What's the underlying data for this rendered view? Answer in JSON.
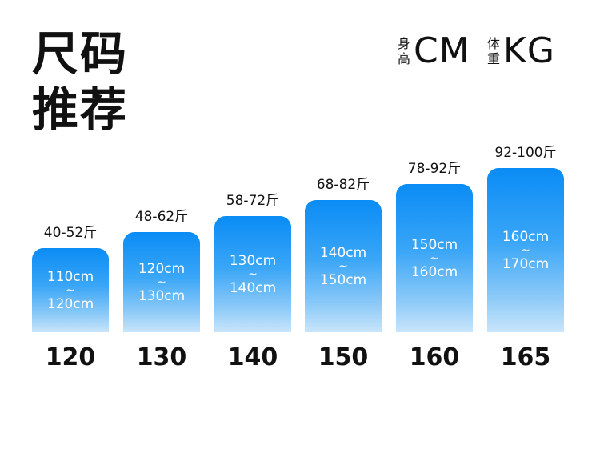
{
  "title": {
    "line1": "尺码",
    "line2": "推荐"
  },
  "legend": {
    "height": {
      "char1": "身",
      "char2": "高",
      "unit": "CM"
    },
    "weight": {
      "char1": "体",
      "char2": "重",
      "unit": "KG"
    }
  },
  "columns": [
    {
      "weight": "40-52斤",
      "from": "110cm",
      "sep": "~",
      "to": "120cm",
      "size": "120"
    },
    {
      "weight": "48-62斤",
      "from": "120cm",
      "sep": "~",
      "to": "130cm",
      "size": "130"
    },
    {
      "weight": "58-72斤",
      "from": "130cm",
      "sep": "~",
      "to": "140cm",
      "size": "140"
    },
    {
      "weight": "68-82斤",
      "from": "140cm",
      "sep": "~",
      "to": "150cm",
      "size": "150"
    },
    {
      "weight": "78-92斤",
      "from": "150cm",
      "sep": "~",
      "to": "160cm",
      "size": "160"
    },
    {
      "weight": "92-100斤",
      "from": "160cm",
      "sep": "~",
      "to": "170cm",
      "size": "165"
    }
  ]
}
